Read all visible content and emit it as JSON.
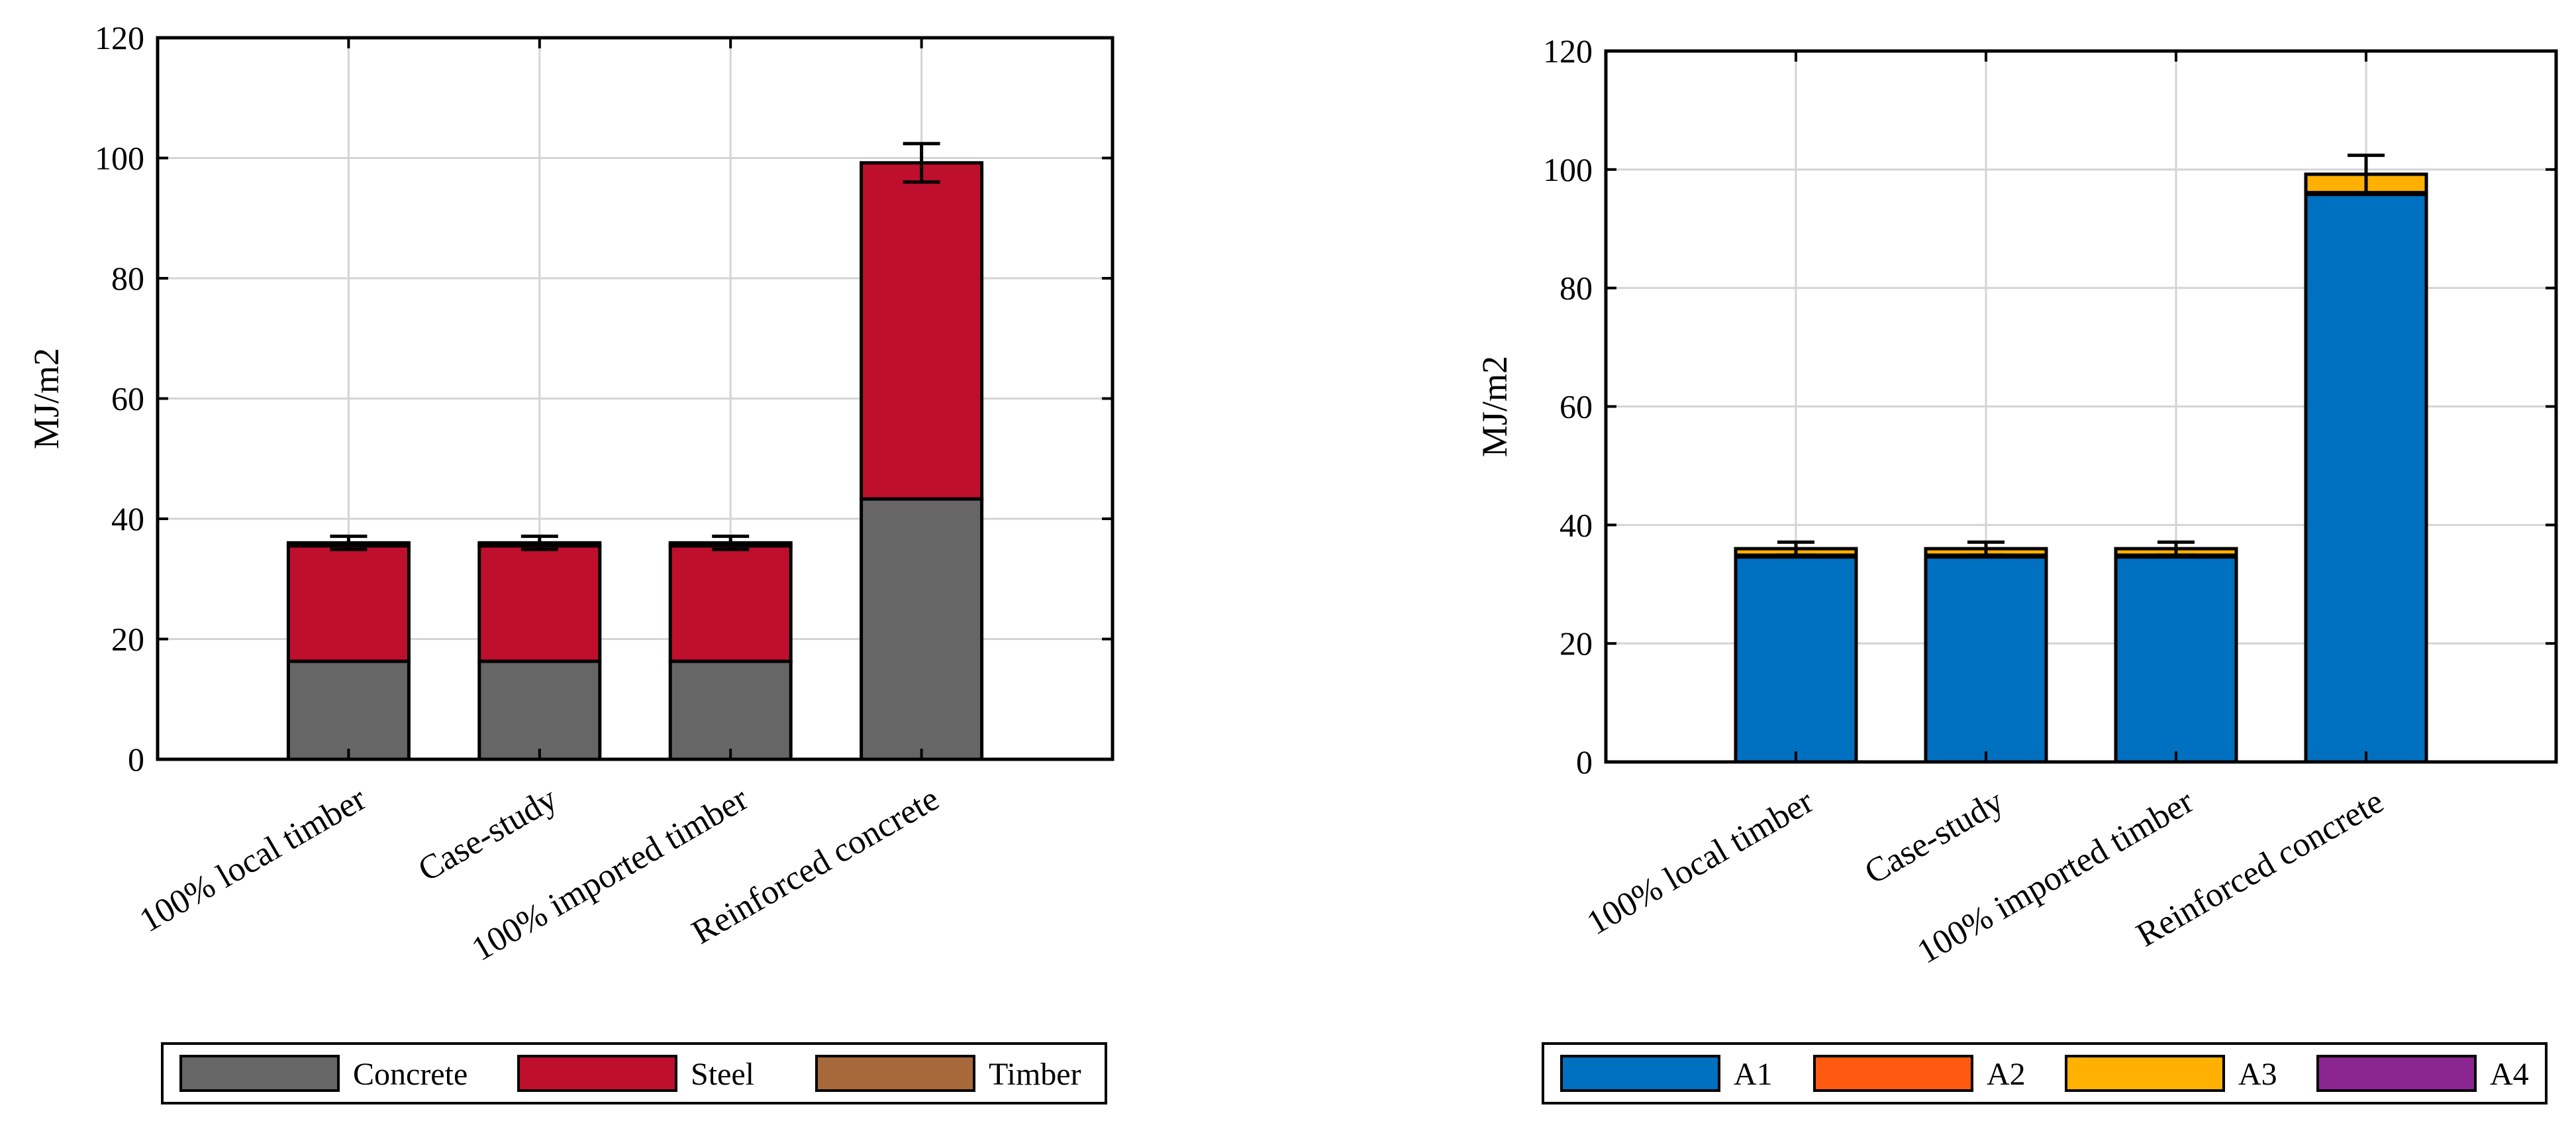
{
  "chart_data": [
    {
      "type": "bar",
      "stacked": true,
      "title": "",
      "xlabel": "",
      "ylabel": "MJ/m2",
      "ylim": [
        0,
        120
      ],
      "yticks": [
        0,
        20,
        40,
        60,
        80,
        100,
        120
      ],
      "grid": true,
      "legend_position": "bottom",
      "categories": [
        "100% local timber",
        "Case-study",
        "100% imported timber",
        "Reinforced concrete"
      ],
      "series": [
        {
          "name": "Concrete",
          "color": "#666666",
          "values": [
            16.3,
            16.3,
            16.3,
            43.3
          ]
        },
        {
          "name": "Steel",
          "color": "#be0f2d",
          "values": [
            19.2,
            19.2,
            19.2,
            55.9
          ]
        },
        {
          "name": "Timber",
          "color": "#a8693a",
          "values": [
            0.5,
            0.5,
            0.5,
            0.0
          ]
        }
      ],
      "error_bars": [
        {
          "total": 36.0,
          "low": 34.9,
          "high": 37.1
        },
        {
          "total": 36.0,
          "low": 34.9,
          "high": 37.1
        },
        {
          "total": 36.0,
          "low": 34.9,
          "high": 37.1
        },
        {
          "total": 99.2,
          "low": 96.0,
          "high": 102.4
        }
      ]
    },
    {
      "type": "bar",
      "stacked": true,
      "title": "",
      "xlabel": "",
      "ylabel": "MJ/m2",
      "ylim": [
        0,
        120
      ],
      "yticks": [
        0,
        20,
        40,
        60,
        80,
        100,
        120
      ],
      "grid": true,
      "legend_position": "bottom",
      "categories": [
        "100% local timber",
        "Case-study",
        "100% imported timber",
        "Reinforced concrete"
      ],
      "series": [
        {
          "name": "A1",
          "color": "#0070c0",
          "values": [
            34.6,
            34.6,
            34.6,
            95.8
          ]
        },
        {
          "name": "A2",
          "color": "#ff5a0f",
          "values": [
            0.3,
            0.3,
            0.3,
            0.3
          ]
        },
        {
          "name": "A3",
          "color": "#ffb000",
          "values": [
            1.1,
            1.1,
            1.1,
            3.1
          ]
        },
        {
          "name": "A4",
          "color": "#8b2590",
          "values": [
            0.0,
            0.0,
            0.0,
            0.0
          ]
        }
      ],
      "error_bars": [
        {
          "total": 36.0,
          "low": 34.9,
          "high": 37.1
        },
        {
          "total": 36.0,
          "low": 34.9,
          "high": 37.1
        },
        {
          "total": 36.0,
          "low": 34.9,
          "high": 37.1
        },
        {
          "total": 99.2,
          "low": 96.0,
          "high": 102.4
        }
      ]
    }
  ]
}
